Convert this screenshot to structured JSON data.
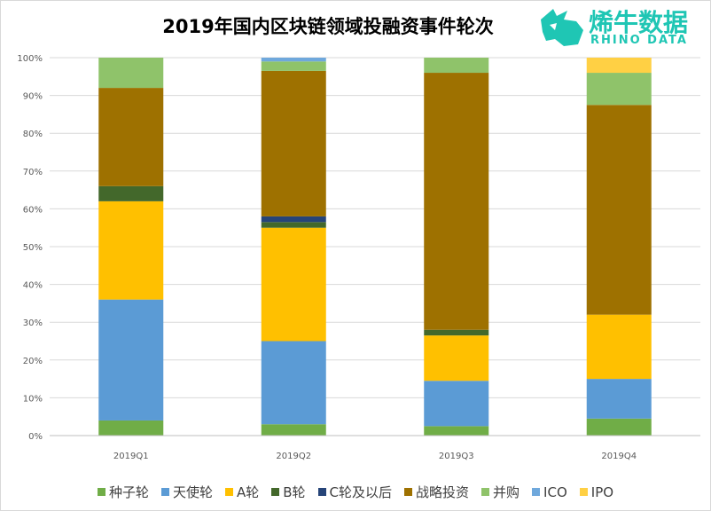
{
  "title": "2019年国内区块链领域投融资事件轮次",
  "logo": {
    "main": "烯牛数据",
    "sub": "RHINO DATA",
    "color": "#1fc6b4",
    "icon": "rhino-head-icon"
  },
  "chart_data": {
    "type": "bar",
    "stacked": true,
    "percent": true,
    "categories": [
      "2019Q1",
      "2019Q2",
      "2019Q3",
      "2019Q4"
    ],
    "ylim": [
      0,
      100
    ],
    "yticks": [
      "0%",
      "10%",
      "20%",
      "30%",
      "40%",
      "50%",
      "60%",
      "70%",
      "80%",
      "90%",
      "100%"
    ],
    "grid": true,
    "legend_position": "bottom",
    "series": [
      {
        "name": "种子轮",
        "color": "#70ad47",
        "values": [
          4,
          3,
          2.5,
          4.5
        ]
      },
      {
        "name": "天使轮",
        "color": "#5b9bd5",
        "values": [
          32,
          22,
          12,
          10.5
        ]
      },
      {
        "name": "A轮",
        "color": "#ffc000",
        "values": [
          26,
          30,
          12,
          17
        ]
      },
      {
        "name": "B轮",
        "color": "#43682b",
        "values": [
          4,
          1.5,
          1.5,
          0
        ]
      },
      {
        "name": "C轮及以后",
        "color": "#264478",
        "values": [
          0,
          1.5,
          0,
          0
        ]
      },
      {
        "name": "战略投资",
        "color": "#9e7100",
        "values": [
          26,
          38.5,
          68,
          55.5
        ]
      },
      {
        "name": "并购",
        "color": "#8fc36a",
        "values": [
          8,
          2.5,
          4,
          8.5
        ]
      },
      {
        "name": "ICO",
        "color": "#6fa8dc",
        "values": [
          0,
          1,
          0,
          0
        ]
      },
      {
        "name": "IPO",
        "color": "#ffd044",
        "values": [
          0,
          0,
          0,
          4
        ]
      }
    ]
  }
}
